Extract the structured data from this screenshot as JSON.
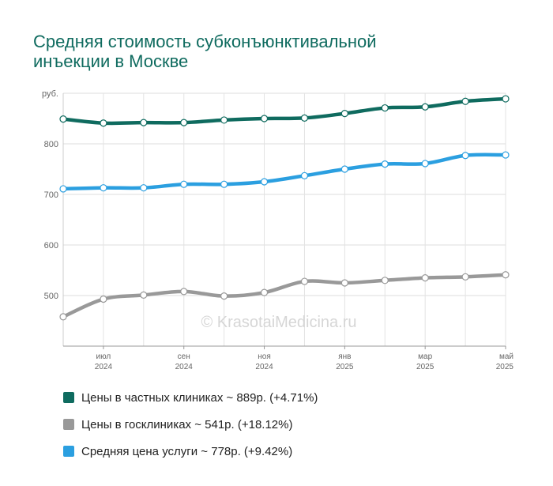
{
  "title_lines": [
    "Средняя стоимость субконъюнктивальной",
    "инъекции в Москве"
  ],
  "watermark": "© KrasotaiMedicina.ru",
  "chart_data": {
    "type": "line",
    "title": "Средняя стоимость субконъюнктивальной инъекции в Москве",
    "y_unit": "руб.",
    "ylim": [
      400,
      900
    ],
    "yticks": [
      {
        "value": 900,
        "label": "руб."
      },
      {
        "value": 800,
        "label": "800"
      },
      {
        "value": 700,
        "label": "700"
      },
      {
        "value": 600,
        "label": "600"
      },
      {
        "value": 500,
        "label": "500"
      }
    ],
    "x_points": 12,
    "x_tick_labels": [
      {
        "index": 1,
        "month": "июл",
        "year": "2024"
      },
      {
        "index": 3,
        "month": "сен",
        "year": "2024"
      },
      {
        "index": 5,
        "month": "ноя",
        "year": "2024"
      },
      {
        "index": 7,
        "month": "янв",
        "year": "2025"
      },
      {
        "index": 9,
        "month": "мар",
        "year": "2025"
      },
      {
        "index": 11,
        "month": "май",
        "year": "2025"
      }
    ],
    "grid": true,
    "legend_position": "bottom",
    "series": [
      {
        "name": "Цены в частных клиниках",
        "color": "#0f6b5f",
        "values": [
          849,
          841,
          842,
          842,
          847,
          850,
          851,
          860,
          871,
          873,
          884,
          889
        ],
        "legend": "Цены в частных клиниках ~ 889р. (+4.71%)"
      },
      {
        "name": "Цены в госклиниках",
        "color": "#999999",
        "values": [
          458,
          493,
          501,
          508,
          499,
          506,
          528,
          525,
          530,
          535,
          537,
          541
        ],
        "legend": "Цены в госклиниках ~ 541р. (+18.12%)"
      },
      {
        "name": "Средняя цена услуги",
        "color": "#2b9fe0",
        "values": [
          711,
          713,
          713,
          720,
          720,
          725,
          737,
          750,
          760,
          761,
          777,
          778
        ],
        "legend": "Средняя цена услуги ~ 778р. (+9.42%)"
      }
    ]
  }
}
